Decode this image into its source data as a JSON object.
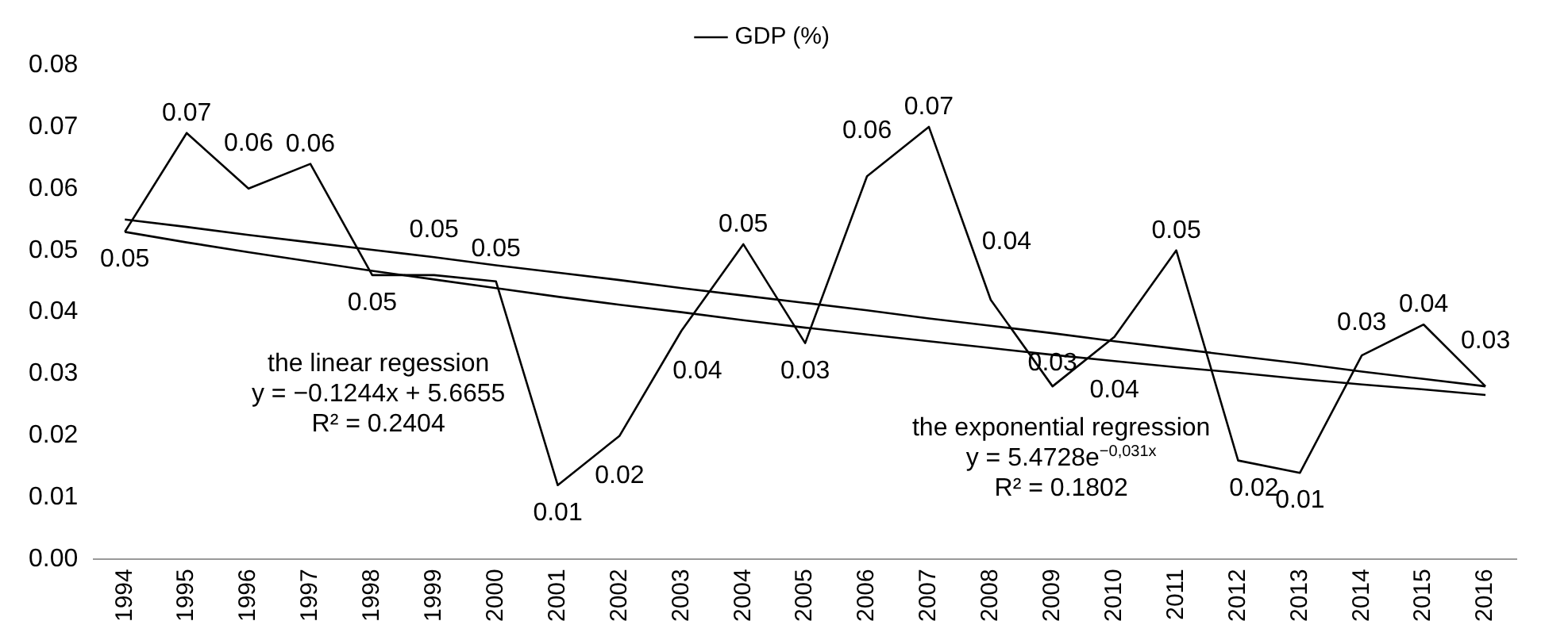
{
  "chart_data": {
    "type": "line",
    "categories": [
      "1994",
      "1995",
      "1996",
      "1997",
      "1998",
      "1999",
      "2000",
      "2001",
      "2002",
      "2003",
      "2004",
      "2005",
      "2006",
      "2007",
      "2008",
      "2009",
      "2010",
      "2011",
      "2012",
      "2013",
      "2014",
      "2015",
      "2016"
    ],
    "series": [
      {
        "name": "GDP (%)",
        "color": "#000000",
        "values": [
          0.053,
          0.069,
          0.06,
          0.064,
          0.046,
          0.046,
          0.045,
          0.012,
          0.02,
          0.037,
          0.051,
          0.035,
          0.062,
          0.07,
          0.042,
          0.028,
          0.036,
          0.05,
          0.016,
          0.014,
          0.033,
          0.038,
          0.028
        ],
        "value_labels": [
          "0.05",
          "0.07",
          "0.06",
          "0.06",
          "0.05",
          "0.05",
          "0.05",
          "0.01",
          "0.02",
          "0.04",
          "0.05",
          "0.03",
          "0.06",
          "0.07",
          "0.04",
          "0.03",
          "0.04",
          "0.05",
          "0.02",
          "0.01",
          "0.03",
          "0.04",
          "0.03"
        ]
      },
      {
        "type": "line",
        "color": "#000000",
        "values": [
          0.055,
          0.0538,
          0.0525,
          0.0513,
          0.0501,
          0.0489,
          0.0476,
          0.0464,
          0.0452,
          0.0439,
          0.0427,
          0.0415,
          0.0403,
          0.039,
          0.0378,
          0.0366,
          0.0353,
          0.0341,
          0.0329,
          0.0317,
          0.0304,
          0.0292,
          0.028
        ]
      },
      {
        "type": "line",
        "color": "#000000",
        "values": [
          0.053,
          0.0513,
          0.0497,
          0.0482,
          0.0467,
          0.0453,
          0.0439,
          0.0425,
          0.0412,
          0.04,
          0.0387,
          0.0375,
          0.0364,
          0.0353,
          0.0342,
          0.0331,
          0.0321,
          0.0311,
          0.0302,
          0.0292,
          0.0283,
          0.0275,
          0.0266
        ]
      }
    ],
    "ylim": [
      0,
      0.08
    ],
    "yticks": [
      {
        "value": 0,
        "label": "0.00"
      },
      {
        "value": 0.01,
        "label": "0.01"
      },
      {
        "value": 0.02,
        "label": "0.02"
      },
      {
        "value": 0.03,
        "label": "0.03"
      },
      {
        "value": 0.04,
        "label": "0.04"
      },
      {
        "value": 0.05,
        "label": "0.05"
      },
      {
        "value": 0.06,
        "label": "0.06"
      },
      {
        "value": 0.07,
        "label": "0.07"
      },
      {
        "value": 0.08,
        "label": "0.08"
      }
    ],
    "annotations": [
      "the linear regession\ny = −0.1244x + 5.6655\nR² = 0.2404",
      "the exponential regression\ny = 5.4728e$^{−0,031x}$\nR² = 0.1802"
    ],
    "grid": false,
    "legend": "top",
    "marker": "none",
    "line_style": "solid"
  }
}
